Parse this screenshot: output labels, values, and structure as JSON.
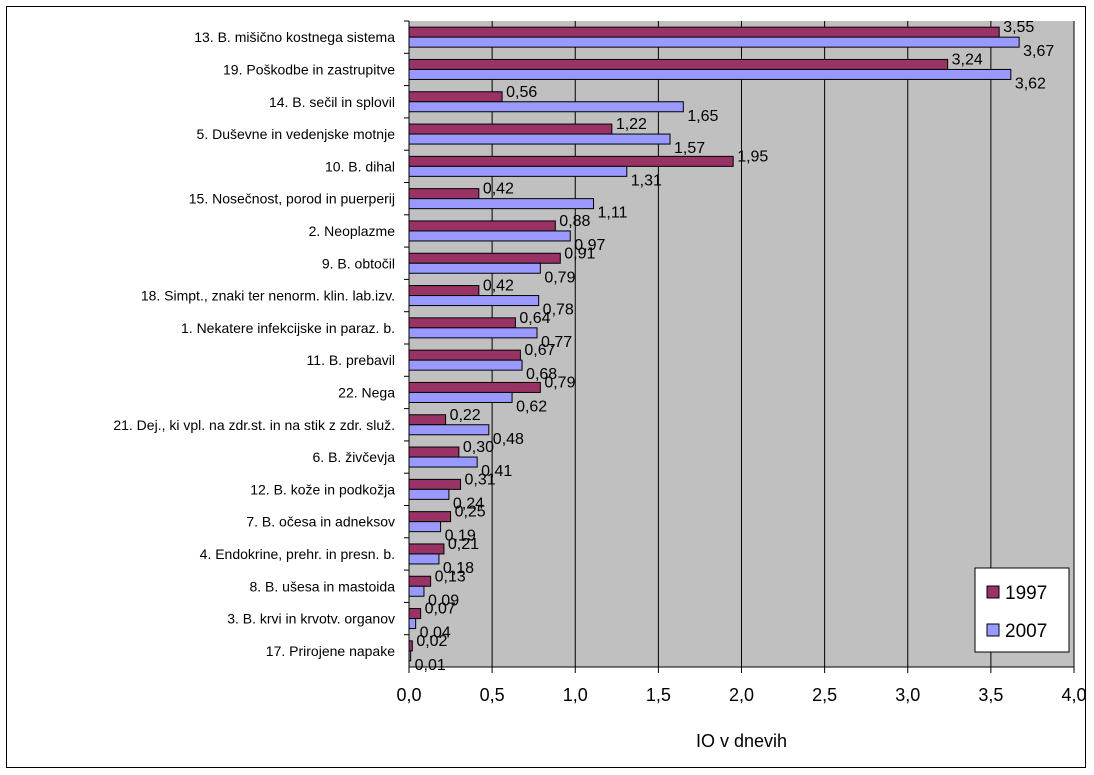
{
  "chart_data": {
    "type": "bar",
    "orientation": "horizontal",
    "categories": [
      "13. B. mišično kostnega sistema",
      "19. Poškodbe in zastrupitve",
      "14. B. sečil in splovil",
      "5. Duševne in vedenjske motnje",
      "10. B. dihal",
      "15. Nosečnost, porod in puerperij",
      "2. Neoplazme",
      "9. B. obtočil",
      "18. Simpt., znaki ter nenorm. klin. lab.izv.",
      "1. Nekatere infekcijske in paraz. b.",
      "11. B. prebavil",
      "22. Nega",
      "21. Dej., ki vpl. na zdr.st. in na stik z zdr. služ.",
      "6. B. živčevja",
      "12. B. kože in podkožja",
      "7. B. očesa in adneksov",
      "4. Endokrine, prehr. in presn. b.",
      "8. B. ušesa in mastoida",
      "3. B. krvi in krvotv. organov",
      "17. Prirojene napake"
    ],
    "series": [
      {
        "name": "1997",
        "color": "#993366",
        "values": [
          3.55,
          3.24,
          0.56,
          1.22,
          1.95,
          0.42,
          0.88,
          0.91,
          0.42,
          0.64,
          0.67,
          0.79,
          0.22,
          0.3,
          0.31,
          0.25,
          0.21,
          0.13,
          0.07,
          0.02
        ],
        "labels": [
          "3,55",
          "3,24",
          "0,56",
          "1,22",
          "1,95",
          "0,42",
          "0,88",
          "0,91",
          "0,42",
          "0,64",
          "0,67",
          "0,79",
          "0,22",
          "0,30",
          "0,31",
          "0,25",
          "0,21",
          "0,13",
          "0,07",
          "0,02"
        ]
      },
      {
        "name": "2007",
        "color": "#9999ff",
        "values": [
          3.67,
          3.62,
          1.65,
          1.57,
          1.31,
          1.11,
          0.97,
          0.79,
          0.78,
          0.77,
          0.68,
          0.62,
          0.48,
          0.41,
          0.24,
          0.19,
          0.18,
          0.09,
          0.04,
          0.01
        ],
        "labels": [
          "3,67",
          "3,62",
          "1,65",
          "1,57",
          "1,31",
          "1,11",
          "0,97",
          "0,79",
          "0,78",
          "0,77",
          "0,68",
          "0,62",
          "0,48",
          "0,41",
          "0,24",
          "0,19",
          "0,18",
          "0,09",
          "0,04",
          "0,01"
        ]
      }
    ],
    "xlabel": "IO v dnevih",
    "xlim": [
      0,
      4.0
    ],
    "xticks": [
      "0,0",
      "0,5",
      "1,0",
      "1,5",
      "2,0",
      "2,5",
      "3,0",
      "3,5",
      "4,0"
    ],
    "xtick_values": [
      0,
      0.5,
      1.0,
      1.5,
      2.0,
      2.5,
      3.0,
      3.5,
      4.0
    ],
    "grid": true,
    "plot_background": "#c0c0c0",
    "legend_position": "bottom-right"
  }
}
